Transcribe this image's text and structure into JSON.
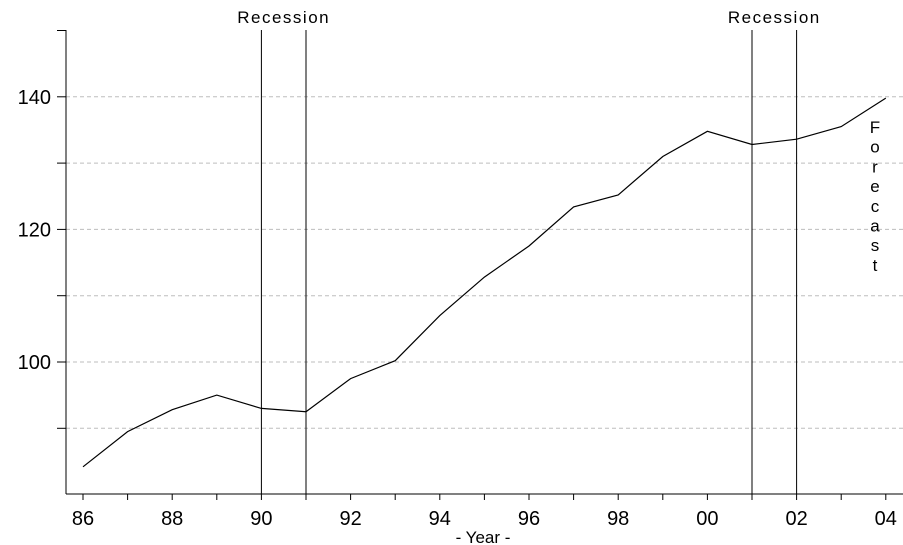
{
  "chart_data": {
    "type": "line",
    "xlabel": "- Year -",
    "ylabel": "",
    "title": "",
    "x_tick_labels": [
      "86",
      "88",
      "90",
      "92",
      "94",
      "96",
      "98",
      "00",
      "02",
      "04"
    ],
    "x_tick_years": [
      1986,
      1988,
      1990,
      1992,
      1994,
      1996,
      1998,
      2000,
      2002,
      2004
    ],
    "y_tick_labels": [
      "100",
      "120",
      "140"
    ],
    "y_tick_values": [
      100,
      120,
      140
    ],
    "y_grid_values": [
      90,
      100,
      110,
      120,
      130,
      140
    ],
    "xlim": [
      1985.5,
      2004.2
    ],
    "ylim": [
      80,
      150
    ],
    "grid": "horizontal, dashed",
    "series": [
      {
        "x": [
          1986,
          1987,
          1988,
          1989,
          1990,
          1991,
          1992,
          1993,
          1994,
          1995,
          1996,
          1997,
          1998,
          1999,
          2000,
          2001,
          2002,
          2003,
          2004
        ],
        "y": [
          84.2,
          89.5,
          92.8,
          95.0,
          93.0,
          92.5,
          97.5,
          100.2,
          107.0,
          112.8,
          117.5,
          123.4,
          125.2,
          131.0,
          134.8,
          132.8,
          133.6,
          135.5,
          139.8
        ]
      }
    ],
    "recessions": [
      {
        "label": "Recession",
        "start": 1990,
        "end": 1991
      },
      {
        "label": "Recession",
        "start": 2001,
        "end": 2002
      }
    ],
    "forecast_label": "Forecast"
  }
}
